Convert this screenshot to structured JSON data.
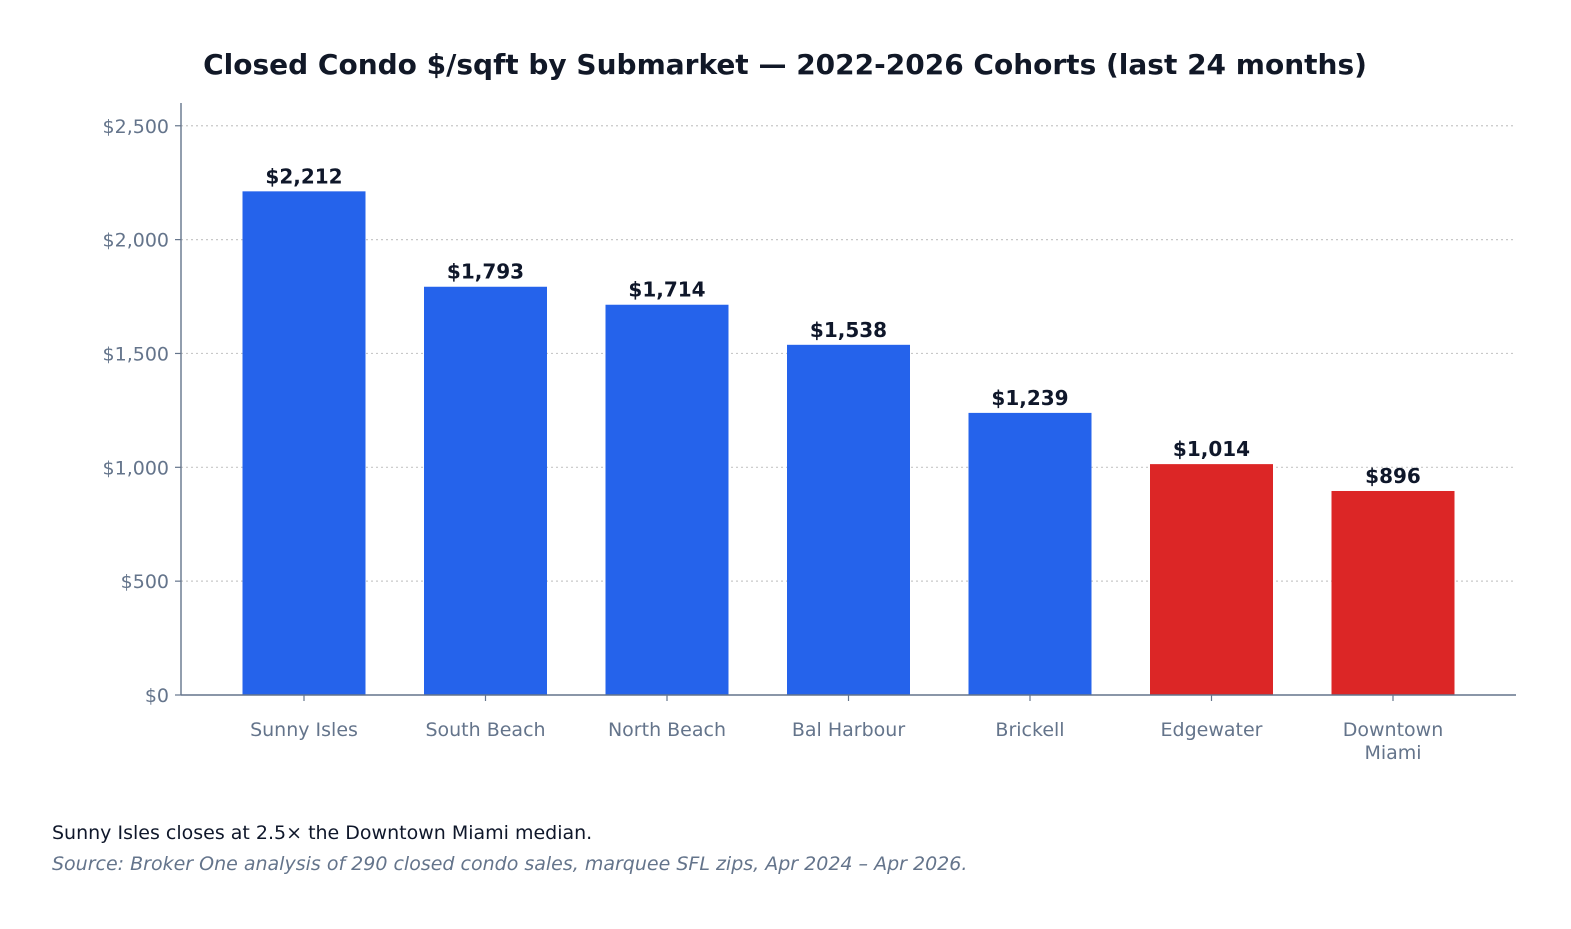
{
  "chart_data": {
    "type": "bar",
    "title": "Closed Condo $/sqft by Submarket — 2022-2026 Cohorts (last 24 months)",
    "xlabel": "",
    "ylabel": "",
    "categories": [
      "Sunny Isles",
      "South Beach",
      "North Beach",
      "Bal Harbour",
      "Brickell",
      "Edgewater",
      "Downtown Miami"
    ],
    "category_lines": [
      [
        "Sunny Isles"
      ],
      [
        "South Beach"
      ],
      [
        "North Beach"
      ],
      [
        "Bal Harbour"
      ],
      [
        "Brickell"
      ],
      [
        "Edgewater"
      ],
      [
        "Downtown",
        "Miami"
      ]
    ],
    "values": [
      2212,
      1793,
      1714,
      1538,
      1239,
      1014,
      896
    ],
    "value_labels": [
      "$2,212",
      "$1,793",
      "$1,714",
      "$1,538",
      "$1,239",
      "$1,014",
      "$896"
    ],
    "bar_colors": [
      "#2563eb",
      "#2563eb",
      "#2563eb",
      "#2563eb",
      "#2563eb",
      "#dc2626",
      "#dc2626"
    ],
    "ylim": [
      0,
      2600
    ],
    "yticks": [
      0,
      500,
      1000,
      1500,
      2000,
      2500
    ],
    "ytick_labels": [
      "$0",
      "$500",
      "$1,000",
      "$1,500",
      "$2,000",
      "$2,500"
    ],
    "grid": "y-dotted",
    "legend": "none"
  },
  "annotations": {
    "note": "Sunny Isles closes at 2.5× the Downtown Miami median.",
    "source": "Source: Broker One analysis of 290 closed condo sales, marquee SFL zips, Apr 2024 – Apr 2026."
  },
  "colors": {
    "title": "#111827",
    "axis": "#64748b",
    "tick_label": "#64748b",
    "value_label": "#0f172a",
    "grid": "#c8c8c8",
    "highlight": "#dc2626",
    "primary": "#2563eb"
  }
}
